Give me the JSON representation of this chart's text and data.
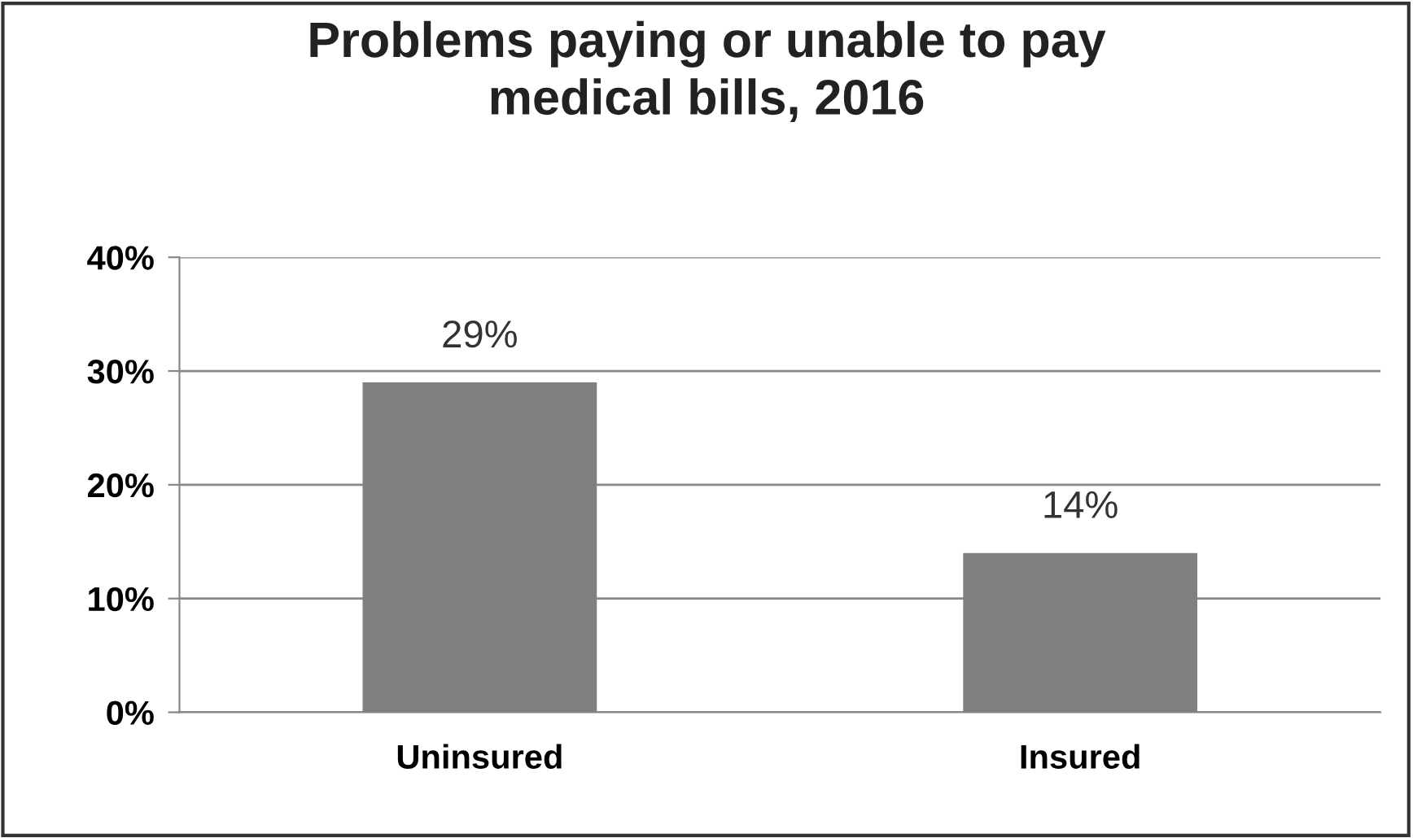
{
  "chart_data": {
    "type": "bar",
    "title": "Problems paying or unable to pay\nmedical bills, 2016",
    "categories": [
      "Uninsured",
      "Insured"
    ],
    "values": [
      29,
      14
    ],
    "value_labels": [
      "29%",
      "14%"
    ],
    "color": "#808080",
    "ylim": [
      0,
      40
    ],
    "yticks": [
      {
        "value": 0,
        "label": "0%"
      },
      {
        "value": 10,
        "label": "10%"
      },
      {
        "value": 20,
        "label": "20%"
      },
      {
        "value": 30,
        "label": "30%"
      },
      {
        "value": 40,
        "label": "40%"
      }
    ],
    "grid": "y"
  }
}
